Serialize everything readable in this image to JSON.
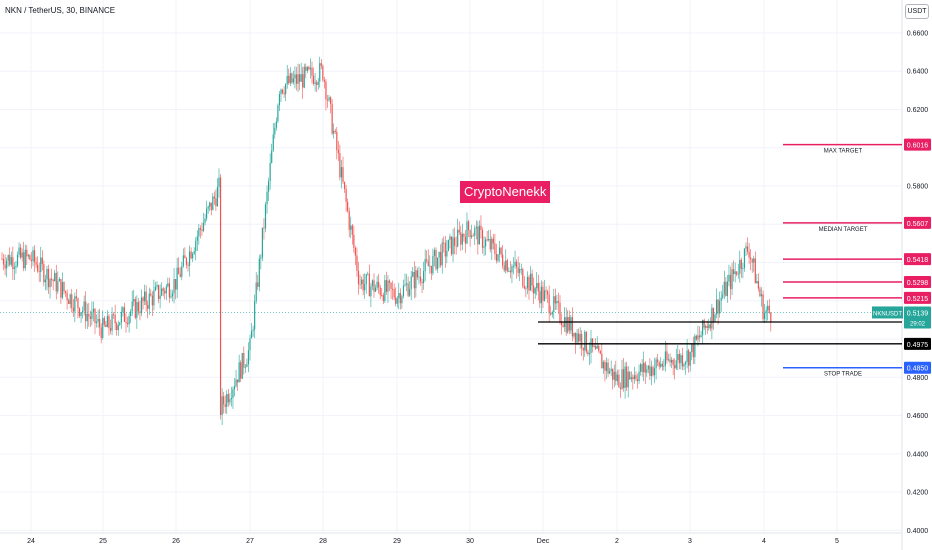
{
  "header": {
    "symbol_line": "NKN / TetherUS, 30, BINANCE"
  },
  "watermark": {
    "text": "CryptoNenekk"
  },
  "price_axis": {
    "currency_button": "USDT",
    "labels": [
      "0.6600",
      "0.6400",
      "0.6200",
      "0.5800",
      "0.4800",
      "0.4600",
      "0.4400",
      "0.4200",
      "0.4000"
    ]
  },
  "time_axis": {
    "labels": [
      "24",
      "25",
      "26",
      "27",
      "28",
      "29",
      "30",
      "Dec",
      "2",
      "3",
      "4",
      "5"
    ]
  },
  "chart_data": {
    "type": "candlestick",
    "symbol": "NKN / TetherUS",
    "interval": "30",
    "exchange": "BINANCE",
    "ylim": [
      0.396,
      0.672
    ],
    "x_categories": [
      "24",
      "25",
      "26",
      "27",
      "28",
      "29",
      "30",
      "Dec",
      "2",
      "3",
      "4",
      "5"
    ],
    "price_path_approx": [
      {
        "x": "24",
        "close": 0.542
      },
      {
        "x": "25",
        "close": 0.505
      },
      {
        "x": "26",
        "close": 0.53
      },
      {
        "x": "26.6",
        "close": 0.58
      },
      {
        "x": "26.6",
        "low": 0.463
      },
      {
        "x": "27",
        "close": 0.495
      },
      {
        "x": "27.4",
        "high": 0.632
      },
      {
        "x": "28",
        "high": 0.64
      },
      {
        "x": "28.5",
        "close": 0.53
      },
      {
        "x": "29",
        "close": 0.523
      },
      {
        "x": "30",
        "close": 0.558
      },
      {
        "x": "Dec",
        "close": 0.523
      },
      {
        "x": "2",
        "low": 0.479
      },
      {
        "x": "3",
        "close": 0.492
      },
      {
        "x": "3.8",
        "high": 0.548
      },
      {
        "x": "4",
        "close": 0.5139
      }
    ],
    "last_price": {
      "symbol_label": "NKNUSDT",
      "price": "0.5139",
      "countdown": "29:02",
      "color": "#26a69a"
    },
    "levels": [
      {
        "name": "MAX TARGET",
        "price": "0.6016",
        "color": "#e91e63"
      },
      {
        "name": "MEDIAN TARGET",
        "price": "0.5607",
        "color": "#e91e63"
      },
      {
        "name": "",
        "price": "0.5418",
        "color": "#e91e63"
      },
      {
        "name": "",
        "price": "0.5298",
        "color": "#e91e63"
      },
      {
        "name": "",
        "price": "0.5215",
        "color": "#e91e63"
      },
      {
        "name": "",
        "price": "0.5089",
        "color": "#000000"
      },
      {
        "name": "",
        "price": "0.4975",
        "color": "#000000"
      },
      {
        "name": "STOP TRADE",
        "price": "0.4850",
        "color": "#2962ff"
      }
    ],
    "grid": true,
    "up_color": "#26a69a",
    "down_color": "#ef5350"
  }
}
